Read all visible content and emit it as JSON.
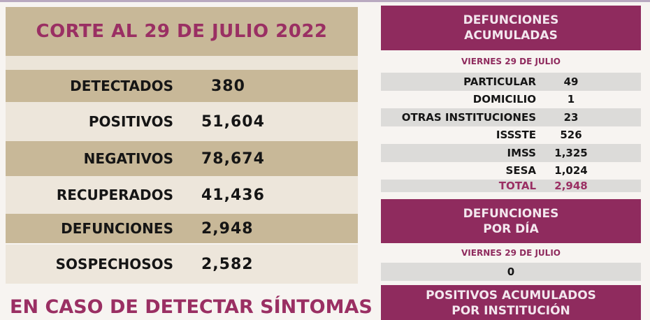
{
  "left": {
    "title": "CORTE AL 29 DE JULIO 2022",
    "rows": [
      {
        "label": "DETECTADOS",
        "value": "380"
      },
      {
        "label": "POSITIVOS",
        "value": "51,604"
      },
      {
        "label": "NEGATIVOS",
        "value": "78,674"
      },
      {
        "label": "RECUPERADOS",
        "value": "41,436"
      },
      {
        "label": "DEFUNCIONES",
        "value": "2,948"
      },
      {
        "label": "SOSPECHOSOS",
        "value": "2,582"
      }
    ],
    "footer": "EN CASO DE DETECTAR SÍNTOMAS"
  },
  "right": {
    "acum_title_1": "DEFUNCIONES",
    "acum_title_2": "ACUMULADAS",
    "acum_date": "VIERNES 29 DE JULIO",
    "acum_rows": [
      {
        "label": "PARTICULAR",
        "value": "49"
      },
      {
        "label": "DOMICILIO",
        "value": "1"
      },
      {
        "label": "OTRAS INSTITUCIONES",
        "value": "23"
      },
      {
        "label": "ISSSTE",
        "value": "526"
      },
      {
        "label": "IMSS",
        "value": "1,325"
      },
      {
        "label": "SESA",
        "value": "1,024"
      },
      {
        "label": "TOTAL",
        "value": "2,948"
      }
    ],
    "dia_title_1": "DEFUNCIONES",
    "dia_title_2": "POR DÍA",
    "dia_date": "VIERNES 29 DE JULIO",
    "dia_value": "0",
    "pos_title_1": "POSITIVOS ACUMULADOS",
    "pos_title_2": "POR INSTITUCIÓN"
  },
  "colors": {
    "tan": "#c8b898",
    "maroon": "#8f2b5e",
    "cream": "#ede6db"
  }
}
